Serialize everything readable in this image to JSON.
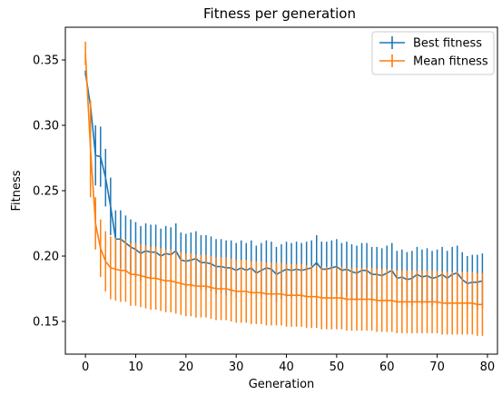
{
  "chart_data": {
    "type": "line",
    "title": "Fitness per generation",
    "xlabel": "Generation",
    "ylabel": "Fitness",
    "xlim": [
      -4,
      82
    ],
    "ylim": [
      0.125,
      0.375
    ],
    "xticks": [
      0,
      10,
      20,
      30,
      40,
      50,
      60,
      70,
      80
    ],
    "yticks": [
      0.15,
      0.2,
      0.25,
      0.3,
      0.35
    ],
    "ytick_labels": [
      "0.15",
      "0.20",
      "0.25",
      "0.30",
      "0.35"
    ],
    "grid": false,
    "legend_position": "top-right",
    "x": [
      0,
      1,
      2,
      3,
      4,
      5,
      6,
      7,
      8,
      9,
      10,
      11,
      12,
      13,
      14,
      15,
      16,
      17,
      18,
      19,
      20,
      21,
      22,
      23,
      24,
      25,
      26,
      27,
      28,
      29,
      30,
      31,
      32,
      33,
      34,
      35,
      36,
      37,
      38,
      39,
      40,
      41,
      42,
      43,
      44,
      45,
      46,
      47,
      48,
      49,
      50,
      51,
      52,
      53,
      54,
      55,
      56,
      57,
      58,
      59,
      60,
      61,
      62,
      63,
      64,
      65,
      66,
      67,
      68,
      69,
      70,
      71,
      72,
      73,
      74,
      75,
      76,
      77,
      78,
      79
    ],
    "series": [
      {
        "name": "Best fitness",
        "color": "#1f77b4",
        "values": [
          0.34,
          0.315,
          0.277,
          0.276,
          0.26,
          0.238,
          0.213,
          0.213,
          0.21,
          0.207,
          0.205,
          0.202,
          0.204,
          0.203,
          0.203,
          0.2,
          0.202,
          0.201,
          0.204,
          0.197,
          0.196,
          0.197,
          0.198,
          0.195,
          0.195,
          0.194,
          0.192,
          0.192,
          0.191,
          0.191,
          0.189,
          0.191,
          0.189,
          0.191,
          0.187,
          0.189,
          0.191,
          0.19,
          0.186,
          0.188,
          0.19,
          0.189,
          0.19,
          0.189,
          0.19,
          0.191,
          0.195,
          0.19,
          0.19,
          0.191,
          0.192,
          0.189,
          0.19,
          0.188,
          0.187,
          0.189,
          0.189,
          0.186,
          0.186,
          0.185,
          0.187,
          0.189,
          0.183,
          0.184,
          0.182,
          0.183,
          0.186,
          0.184,
          0.185,
          0.183,
          0.184,
          0.186,
          0.183,
          0.186,
          0.187,
          0.182,
          0.179,
          0.18,
          0.18,
          0.181
        ],
        "error": [
          0.002,
          0.003,
          0.023,
          0.023,
          0.022,
          0.022,
          0.022,
          0.022,
          0.021,
          0.021,
          0.021,
          0.021,
          0.021,
          0.021,
          0.021,
          0.021,
          0.021,
          0.021,
          0.021,
          0.021,
          0.021,
          0.021,
          0.021,
          0.021,
          0.021,
          0.021,
          0.021,
          0.021,
          0.021,
          0.021,
          0.021,
          0.021,
          0.021,
          0.021,
          0.021,
          0.021,
          0.021,
          0.021,
          0.021,
          0.021,
          0.021,
          0.021,
          0.021,
          0.021,
          0.021,
          0.021,
          0.021,
          0.021,
          0.021,
          0.021,
          0.021,
          0.021,
          0.021,
          0.021,
          0.021,
          0.021,
          0.021,
          0.021,
          0.021,
          0.021,
          0.021,
          0.021,
          0.021,
          0.021,
          0.021,
          0.021,
          0.021,
          0.021,
          0.021,
          0.021,
          0.021,
          0.021,
          0.021,
          0.021,
          0.021,
          0.021,
          0.021,
          0.021,
          0.021,
          0.021
        ]
      },
      {
        "name": "Mean fitness",
        "color": "#ff7f0e",
        "values": [
          0.355,
          0.282,
          0.225,
          0.206,
          0.196,
          0.191,
          0.19,
          0.189,
          0.189,
          0.186,
          0.186,
          0.185,
          0.184,
          0.183,
          0.183,
          0.182,
          0.181,
          0.181,
          0.18,
          0.179,
          0.178,
          0.178,
          0.177,
          0.177,
          0.177,
          0.176,
          0.175,
          0.175,
          0.175,
          0.174,
          0.173,
          0.173,
          0.173,
          0.172,
          0.172,
          0.172,
          0.171,
          0.171,
          0.171,
          0.171,
          0.17,
          0.17,
          0.17,
          0.17,
          0.169,
          0.169,
          0.169,
          0.168,
          0.168,
          0.168,
          0.168,
          0.168,
          0.167,
          0.167,
          0.167,
          0.167,
          0.167,
          0.167,
          0.166,
          0.166,
          0.166,
          0.166,
          0.165,
          0.165,
          0.165,
          0.165,
          0.165,
          0.165,
          0.165,
          0.165,
          0.165,
          0.164,
          0.164,
          0.164,
          0.164,
          0.164,
          0.164,
          0.164,
          0.163,
          0.163
        ],
        "error": [
          0.009,
          0.037,
          0.02,
          0.022,
          0.023,
          0.024,
          0.024,
          0.024,
          0.024,
          0.024,
          0.024,
          0.024,
          0.024,
          0.024,
          0.024,
          0.024,
          0.024,
          0.024,
          0.024,
          0.024,
          0.024,
          0.024,
          0.024,
          0.024,
          0.024,
          0.024,
          0.024,
          0.024,
          0.024,
          0.024,
          0.024,
          0.024,
          0.024,
          0.024,
          0.024,
          0.024,
          0.024,
          0.024,
          0.024,
          0.024,
          0.024,
          0.024,
          0.024,
          0.024,
          0.024,
          0.024,
          0.024,
          0.024,
          0.024,
          0.024,
          0.024,
          0.024,
          0.024,
          0.024,
          0.024,
          0.024,
          0.024,
          0.024,
          0.024,
          0.024,
          0.024,
          0.024,
          0.024,
          0.024,
          0.024,
          0.024,
          0.024,
          0.024,
          0.024,
          0.024,
          0.024,
          0.024,
          0.024,
          0.024,
          0.024,
          0.024,
          0.024,
          0.024,
          0.024,
          0.024
        ]
      }
    ]
  }
}
